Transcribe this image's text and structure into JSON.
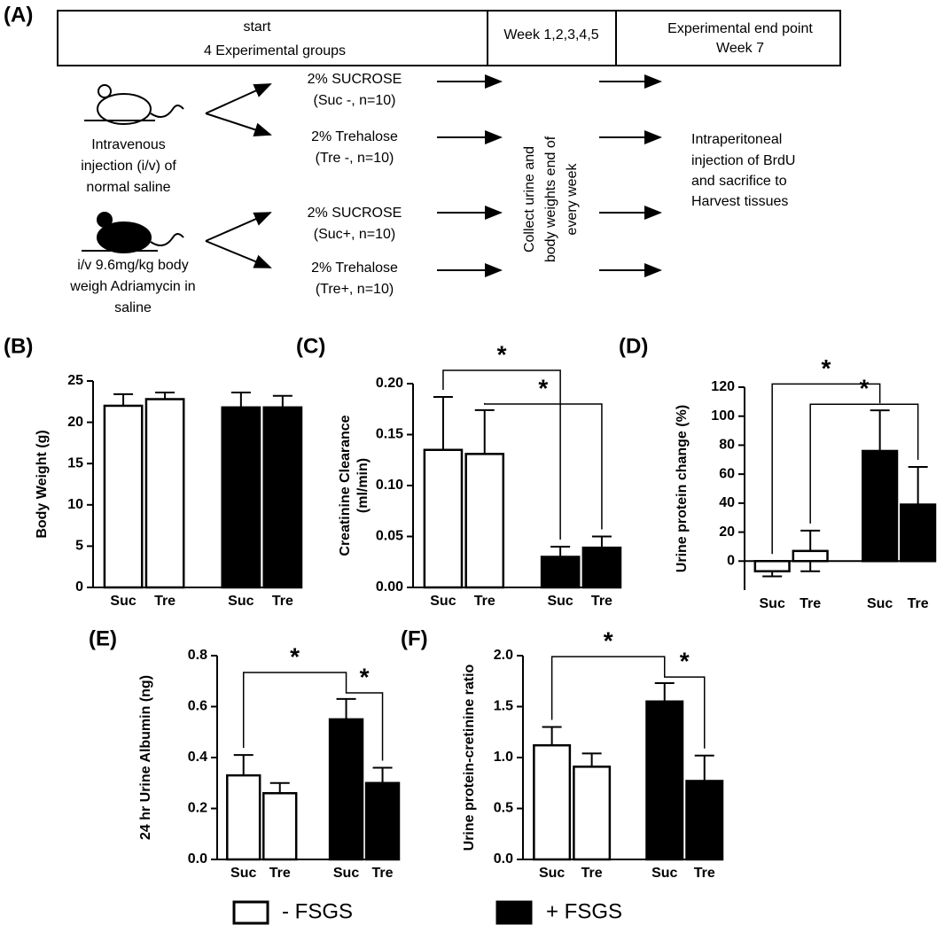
{
  "diagram": {
    "label": "(A)",
    "start": [
      "start",
      "4 Experimental groups"
    ],
    "weeks": "Week 1,2,3,4,5",
    "end": [
      "Experimental end point",
      "Week 7"
    ],
    "control": [
      "Intravenous",
      "injection (i/v) of",
      "normal saline"
    ],
    "adriamycin": [
      "i/v 9.6mg/kg body",
      "weigh Adriamycin in",
      "saline"
    ],
    "groups": [
      {
        "name": "2% SUCROSE",
        "detail": "(Suc -, n=10)"
      },
      {
        "name": "2% Trehalose",
        "detail": "(Tre -, n=10)"
      },
      {
        "name": "2% SUCROSE",
        "detail": "(Suc+, n=10)"
      },
      {
        "name": "2% Trehalose",
        "detail": "(Tre+, n=10)"
      }
    ],
    "collect": [
      "Collect urine and",
      "body weights end of",
      "every week"
    ],
    "final": [
      "Intraperitoneal",
      "injection of BrdU",
      "and sacrifice to",
      "Harvest tissues"
    ]
  },
  "chart_data": [
    {
      "type": "bar",
      "label": "(B)",
      "y_label": "Body Weight (g)",
      "categories": [
        "Suc",
        "Tre"
      ],
      "series": [
        {
          "name": "- FSGS",
          "color": "#ffffff",
          "values": [
            22,
            22.8
          ],
          "errors": [
            1.4,
            0.8
          ]
        },
        {
          "name": "+ FSGS",
          "color": "#000000",
          "values": [
            21.8,
            21.8
          ],
          "errors": [
            1.8,
            1.4
          ]
        }
      ],
      "ylim": [
        0,
        25
      ],
      "yticks": [
        0,
        5,
        10,
        15,
        20,
        25
      ]
    },
    {
      "type": "bar",
      "label": "(C)",
      "y_label": [
        "Creatinine Clearance",
        "(ml/min)"
      ],
      "categories": [
        "Suc",
        "Tre"
      ],
      "series": [
        {
          "name": "- FSGS",
          "color": "#ffffff",
          "values": [
            0.135,
            0.131
          ],
          "errors": [
            0.052,
            0.043
          ]
        },
        {
          "name": "+ FSGS",
          "color": "#000000",
          "values": [
            0.03,
            0.039
          ],
          "errors": [
            0.01,
            0.011
          ]
        }
      ],
      "ylim": [
        0,
        0.2
      ],
      "yticks": [
        {
          "value": 0,
          "label": "0.00"
        },
        {
          "value": 0.05,
          "label": "0.05"
        },
        {
          "value": 0.1,
          "label": "0.10"
        },
        {
          "value": 0.15,
          "label": "0.15"
        },
        {
          "value": 0.2,
          "label": "0.20"
        }
      ],
      "significance": [
        {
          "from": [
            0,
            0
          ],
          "to": [
            1,
            0
          ],
          "label": "*"
        },
        {
          "from": [
            0,
            1
          ],
          "to": [
            1,
            1
          ],
          "label": "*"
        }
      ]
    },
    {
      "type": "bar",
      "label": "(D)",
      "y_label": "Urine protein change (%)",
      "categories": [
        "Suc",
        "Tre"
      ],
      "series": [
        {
          "name": "- FSGS",
          "color": "#ffffff",
          "values": [
            -7,
            7
          ],
          "errors": [
            3.5,
            14
          ]
        },
        {
          "name": "+ FSGS",
          "color": "#000000",
          "values": [
            76,
            39
          ],
          "errors": [
            28,
            26
          ]
        }
      ],
      "ylim": [
        -20,
        120
      ],
      "yticks": [
        0,
        20,
        40,
        60,
        80,
        100,
        120
      ],
      "significance": [
        {
          "from": [
            0,
            0
          ],
          "to": [
            1,
            0
          ],
          "label": "*"
        },
        {
          "from": [
            0,
            1
          ],
          "to": [
            1,
            1
          ],
          "label": "*"
        }
      ]
    },
    {
      "type": "bar",
      "label": "(E)",
      "y_label": "24 hr Urine Albumin (ng)",
      "categories": [
        "Suc",
        "Tre"
      ],
      "series": [
        {
          "name": "- FSGS",
          "color": "#ffffff",
          "values": [
            0.33,
            0.26
          ],
          "errors": [
            0.08,
            0.04
          ]
        },
        {
          "name": "+ FSGS",
          "color": "#000000",
          "values": [
            0.55,
            0.3
          ],
          "errors": [
            0.08,
            0.06
          ]
        }
      ],
      "ylim": [
        0,
        0.8
      ],
      "yticks": [
        {
          "value": 0,
          "label": "0.0"
        },
        {
          "value": 0.2,
          "label": "0.2"
        },
        {
          "value": 0.4,
          "label": "0.4"
        },
        {
          "value": 0.6,
          "label": "0.6"
        },
        {
          "value": 0.8,
          "label": "0.8"
        }
      ],
      "significance": [
        {
          "from": [
            0,
            0
          ],
          "to": [
            1,
            0
          ],
          "label": "*"
        },
        {
          "from": [
            1,
            0
          ],
          "to": [
            1,
            1
          ],
          "label": "*"
        }
      ]
    },
    {
      "type": "bar",
      "label": "(F)",
      "y_label": "Urine protein-cretinine ratio",
      "categories": [
        "Suc",
        "Tre"
      ],
      "series": [
        {
          "name": "- FSGS",
          "color": "#ffffff",
          "values": [
            1.12,
            0.91
          ],
          "errors": [
            0.18,
            0.13
          ]
        },
        {
          "name": "+ FSGS",
          "color": "#000000",
          "values": [
            1.55,
            0.77
          ],
          "errors": [
            0.18,
            0.25
          ]
        }
      ],
      "ylim": [
        0,
        2
      ],
      "yticks": [
        {
          "value": 0,
          "label": "0.0"
        },
        {
          "value": 0.5,
          "label": "0.5"
        },
        {
          "value": 1,
          "label": "1.0"
        },
        {
          "value": 1.5,
          "label": "1.5"
        },
        {
          "value": 2,
          "label": "2.0"
        }
      ],
      "significance": [
        {
          "from": [
            0,
            0
          ],
          "to": [
            1,
            0
          ],
          "label": "*"
        },
        {
          "from": [
            1,
            0
          ],
          "to": [
            1,
            1
          ],
          "label": "*"
        }
      ]
    }
  ]
}
